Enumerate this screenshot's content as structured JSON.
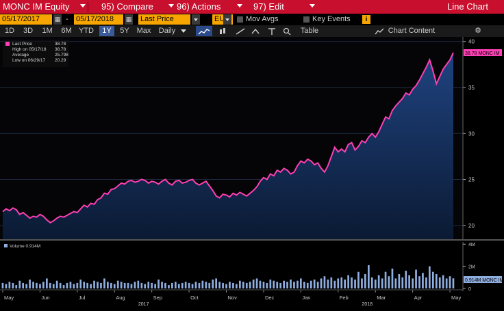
{
  "header": {
    "security": "MONC IM Equity",
    "menu": [
      {
        "num": "95)",
        "label": "Compare"
      },
      {
        "num": "96)",
        "label": "Actions"
      },
      {
        "num": "97)",
        "label": "Edit"
      }
    ],
    "chart_type_label": "Line Chart"
  },
  "controls": {
    "start_date": "05/17/2017",
    "dash": "-",
    "end_date": "05/17/2018",
    "field": "Last Price",
    "currency": "EUR",
    "mov_avgs_label": "Mov Avgs",
    "key_events_label": "Key Events",
    "info_icon": "i"
  },
  "ranges": [
    "1D",
    "3D",
    "1M",
    "6M",
    "YTD",
    "1Y",
    "5Y",
    "Max"
  ],
  "active_range": "1Y",
  "frequency": "Daily",
  "table_label": "Table",
  "chart_content_label": "Chart Content",
  "legend": {
    "last_price_label": "Last Price",
    "last_price_value": "38.78",
    "high_label": "High on 05/17/18",
    "high_value": "38.78",
    "average_label": "Average",
    "average_value": "25.798",
    "low_label": "Low on 06/29/17",
    "low_value": "20.29"
  },
  "price_tag": "38.78 MONC IM",
  "volume_legend": "Volume  0.914M",
  "volume_tag": "0.914M MONC IM",
  "colors": {
    "line": "#ff3fb4",
    "area_top": "#1c3a6e",
    "area_bottom": "#0b1a33",
    "volume": "#8faee0"
  },
  "chart_data": {
    "type": "line",
    "ylim": [
      18.5,
      40.5
    ],
    "yticks": [
      20,
      25,
      30,
      35,
      40
    ],
    "xlabels": [
      {
        "label": "May",
        "i": 0
      },
      {
        "label": "Jun",
        "i": 11
      },
      {
        "label": "Jul",
        "i": 22
      },
      {
        "label": "Aug",
        "i": 33
      },
      {
        "label": "Sep",
        "i": 44
      },
      {
        "label": "Oct",
        "i": 55
      },
      {
        "label": "Nov",
        "i": 66
      },
      {
        "label": "Dec",
        "i": 77
      },
      {
        "label": "Jan",
        "i": 88
      },
      {
        "label": "Feb",
        "i": 99
      },
      {
        "label": "Mar",
        "i": 110
      },
      {
        "label": "Apr",
        "i": 121
      },
      {
        "label": "May",
        "i": 132
      }
    ],
    "years": [
      {
        "label": "2017",
        "i": 40
      },
      {
        "label": "2018",
        "i": 106
      }
    ],
    "series": [
      {
        "values": [
          21.5,
          21.8,
          21.6,
          21.9,
          21.7,
          21.2,
          21.4,
          21.1,
          20.8,
          21.0,
          20.9,
          21.2,
          21.0,
          20.6,
          20.3,
          20.5,
          20.8,
          21.0,
          20.9,
          21.1,
          21.3,
          21.5,
          21.4,
          21.8,
          22.2,
          22.0,
          22.4,
          22.3,
          22.8,
          23.0,
          23.5,
          23.4,
          23.9,
          24.0,
          24.3,
          24.6,
          24.5,
          24.8,
          24.9,
          24.7,
          24.8,
          25.0,
          24.9,
          24.6,
          24.8,
          24.7,
          24.5,
          24.8,
          25.0,
          24.6,
          24.4,
          24.8,
          24.9,
          24.6,
          24.7,
          24.9,
          25.0,
          24.6,
          24.4,
          24.6,
          24.8,
          24.3,
          23.8,
          23.2,
          23.0,
          23.4,
          23.3,
          23.1,
          23.5,
          23.3,
          23.6,
          23.4,
          23.2,
          23.5,
          23.8,
          24.2,
          24.8,
          25.2,
          25.0,
          25.6,
          25.4,
          26.0,
          25.8,
          26.2,
          26.0,
          25.6,
          25.8,
          26.5,
          27.0,
          26.8,
          27.2,
          27.0,
          26.6,
          26.8,
          26.2,
          25.8,
          26.5,
          27.5,
          28.5,
          28.0,
          28.3,
          28.0,
          28.8,
          29.0,
          28.2,
          28.6,
          29.2,
          29.0,
          29.6,
          30.0,
          29.6,
          30.2,
          31.0,
          31.8,
          31.6,
          32.5,
          33.0,
          33.4,
          33.8,
          34.4,
          34.2,
          34.8,
          35.2,
          35.8,
          36.5,
          37.2,
          38.0,
          36.8,
          35.4,
          36.2,
          37.0,
          37.5,
          38.0,
          38.78
        ]
      },
      {
        "name": "Volume",
        "values": [
          0.5,
          0.4,
          0.6,
          0.5,
          0.3,
          0.7,
          0.5,
          0.4,
          0.8,
          0.6,
          0.5,
          0.4,
          0.6,
          0.9,
          0.5,
          0.4,
          0.7,
          0.5,
          0.3,
          0.5,
          0.6,
          0.4,
          0.5,
          0.8,
          0.6,
          0.5,
          0.4,
          0.7,
          0.6,
          0.5,
          0.9,
          0.6,
          0.5,
          0.4,
          0.7,
          0.6,
          0.5,
          0.5,
          0.4,
          0.6,
          0.7,
          0.5,
          0.4,
          0.6,
          0.5,
          0.4,
          0.8,
          0.6,
          0.5,
          0.3,
          0.5,
          0.6,
          0.4,
          0.5,
          0.6,
          0.5,
          0.4,
          0.6,
          0.5,
          0.7,
          0.6,
          0.5,
          0.8,
          0.9,
          0.6,
          0.5,
          0.4,
          0.6,
          0.5,
          0.4,
          0.7,
          0.6,
          0.5,
          0.6,
          0.8,
          0.9,
          0.7,
          0.6,
          0.5,
          0.8,
          0.7,
          0.6,
          0.5,
          0.7,
          0.6,
          0.8,
          0.6,
          0.7,
          0.9,
          0.6,
          0.5,
          0.7,
          0.8,
          0.6,
          0.9,
          1.1,
          0.8,
          1.0,
          0.7,
          0.9,
          1.0,
          0.8,
          1.2,
          1.0,
          0.8,
          1.5,
          0.9,
          1.3,
          2.1,
          1.0,
          0.8,
          1.2,
          0.9,
          1.5,
          1.1,
          1.8,
          0.9,
          1.3,
          1.0,
          1.6,
          1.2,
          0.9,
          1.7,
          1.1,
          1.4,
          1.0,
          2.0,
          1.5,
          1.3,
          1.0,
          1.2,
          0.9,
          1.1,
          0.914
        ]
      }
    ]
  }
}
